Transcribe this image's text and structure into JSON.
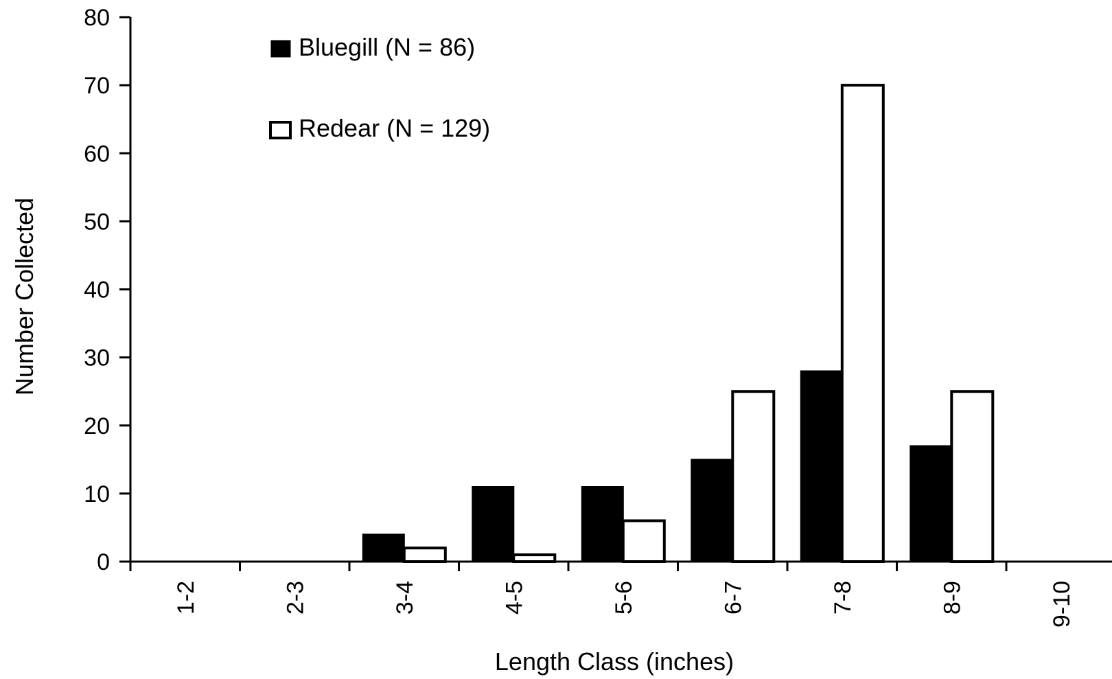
{
  "chart_data": {
    "type": "bar",
    "title": "",
    "xlabel": "Length Class (inches)",
    "ylabel": "Number Collected",
    "categories": [
      "1-2",
      "2-3",
      "3-4",
      "4-5",
      "5-6",
      "6-7",
      "7-8",
      "8-9",
      "9-10"
    ],
    "series": [
      {
        "name": "Bluegill (N = 86)",
        "values": [
          0,
          0,
          4,
          11,
          11,
          15,
          28,
          17,
          0
        ],
        "color": "#000000"
      },
      {
        "name": "Redear (N = 129)",
        "values": [
          0,
          0,
          2,
          1,
          6,
          25,
          70,
          25,
          0
        ],
        "color": "#ffffff"
      }
    ],
    "ylim": [
      0,
      80
    ],
    "yticks": [
      0,
      10,
      20,
      30,
      40,
      50,
      60,
      70,
      80
    ],
    "grid": false,
    "legend": "top-left"
  }
}
